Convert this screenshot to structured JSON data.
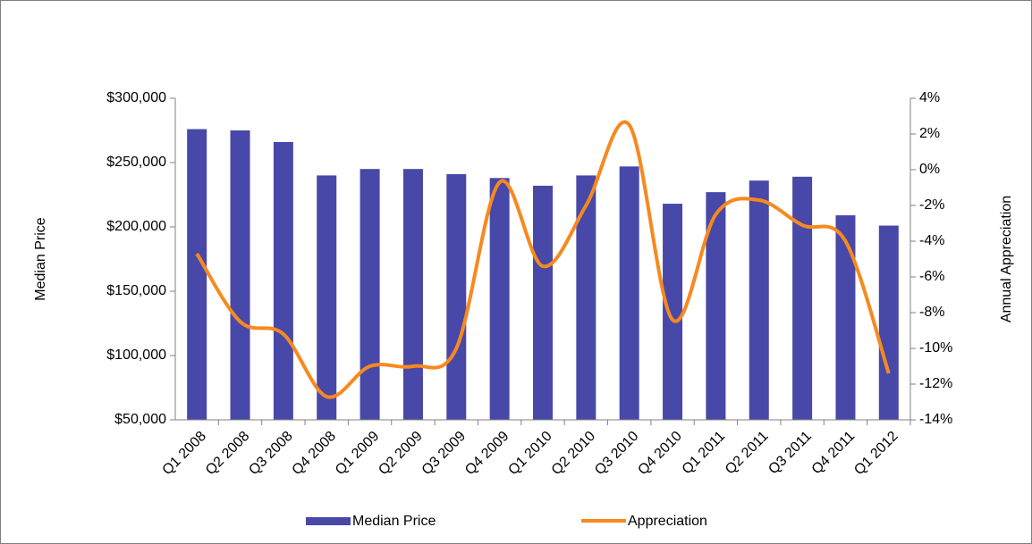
{
  "chart_data": {
    "type": "bar_line",
    "y_label": "Median Price",
    "y2_label": "Annual Appreciation",
    "categories": [
      "Q1 2008",
      "Q2 2008",
      "Q3 2008",
      "Q4 2008",
      "Q1 2009",
      "Q2 2009",
      "Q3 2009",
      "Q4 2009",
      "Q1 2010",
      "Q2 2010",
      "Q3 2010",
      "Q4 2010",
      "Q1 2011",
      "Q2 2011",
      "Q3 2011",
      "Q4 2011",
      "Q1 2012"
    ],
    "series": [
      {
        "name": "Median Price",
        "type": "bar",
        "color": "#4848a8",
        "values": [
          276000,
          275000,
          266000,
          240000,
          245000,
          245000,
          241000,
          238000,
          232000,
          240000,
          247000,
          218000,
          227000,
          236000,
          239000,
          209000,
          201000
        ]
      },
      {
        "name": "Appreciation",
        "type": "line",
        "axis": "y2",
        "color": "#f7891f",
        "values": [
          -4.7,
          -8.5,
          -9.2,
          -12.7,
          -11,
          -11,
          -10,
          -0.7,
          -5.4,
          -2,
          2.5,
          -8.4,
          -2.5,
          -1.7,
          -3.1,
          -4,
          -11.4
        ]
      }
    ],
    "ylim": [
      50000,
      300000
    ],
    "yticks": [
      {
        "value": 50000,
        "label": "$50,000"
      },
      {
        "value": 100000,
        "label": "$100,000"
      },
      {
        "value": 150000,
        "label": "$150,000"
      },
      {
        "value": 200000,
        "label": "$200,000"
      },
      {
        "value": 250000,
        "label": "$250,000"
      },
      {
        "value": 300000,
        "label": "$300,000"
      }
    ],
    "y2lim": [
      -14,
      4
    ],
    "y2ticks": [
      {
        "value": -14,
        "label": "-14%"
      },
      {
        "value": -12,
        "label": "-12%"
      },
      {
        "value": -10,
        "label": "-10%"
      },
      {
        "value": -8,
        "label": "-8%"
      },
      {
        "value": -6,
        "label": "-6%"
      },
      {
        "value": -4,
        "label": "-4%"
      },
      {
        "value": -2,
        "label": "-2%"
      },
      {
        "value": 0,
        "label": "0%"
      },
      {
        "value": 2,
        "label": "2%"
      },
      {
        "value": 4,
        "label": "4%"
      }
    ]
  }
}
